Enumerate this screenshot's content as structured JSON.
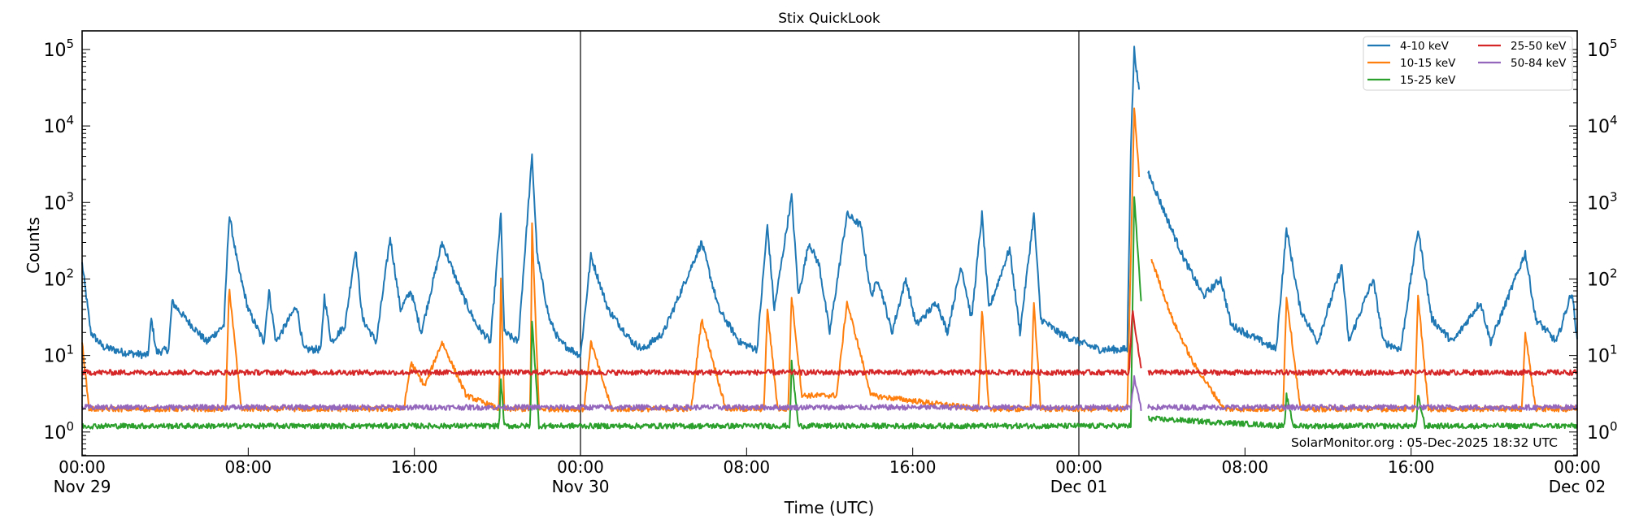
{
  "chart_data": {
    "type": "line",
    "title": "Stix QuickLook",
    "xlabel": "Time (UTC)",
    "ylabel": "Counts",
    "yscale": "log",
    "ylim": [
      0.49,
      175000
    ],
    "xlim": [
      "2025-11-29 00:00",
      "2025-12-02 00:00"
    ],
    "grid": false,
    "legend_position": "top-right",
    "day_boundaries": [
      "2025-11-30 00:00",
      "2025-12-01 00:00"
    ],
    "x_ticks": [
      {
        "time": "00:00",
        "date": "Nov 29",
        "at": "2025-11-29 00:00"
      },
      {
        "time": "08:00",
        "date": "",
        "at": "2025-11-29 08:00"
      },
      {
        "time": "16:00",
        "date": "",
        "at": "2025-11-29 16:00"
      },
      {
        "time": "00:00",
        "date": "Nov 30",
        "at": "2025-11-30 00:00"
      },
      {
        "time": "08:00",
        "date": "",
        "at": "2025-11-30 08:00"
      },
      {
        "time": "16:00",
        "date": "",
        "at": "2025-11-30 16:00"
      },
      {
        "time": "00:00",
        "date": "Dec 01",
        "at": "2025-12-01 00:00"
      },
      {
        "time": "08:00",
        "date": "",
        "at": "2025-12-01 08:00"
      },
      {
        "time": "16:00",
        "date": "",
        "at": "2025-12-01 16:00"
      },
      {
        "time": "00:00",
        "date": "Dec 02",
        "at": "2025-12-02 00:00"
      }
    ],
    "y_ticks": [
      {
        "base": "10",
        "exp": "0",
        "value": 1
      },
      {
        "base": "10",
        "exp": "1",
        "value": 10
      },
      {
        "base": "10",
        "exp": "2",
        "value": 100
      },
      {
        "base": "10",
        "exp": "3",
        "value": 1000
      },
      {
        "base": "10",
        "exp": "4",
        "value": 10000
      },
      {
        "base": "10",
        "exp": "5",
        "value": 100000
      }
    ],
    "annotation": "SolarMonitor.org : 05-Dec-2025 18:32 UTC",
    "series": [
      {
        "name": "4-10 keV",
        "color": "#1f77b4",
        "points": [
          [
            "2025-11-29 00:00",
            160
          ],
          [
            "2025-11-29 00:25",
            20
          ],
          [
            "2025-11-29 01:00",
            13
          ],
          [
            "2025-11-29 02:00",
            11
          ],
          [
            "2025-11-29 03:10",
            10
          ],
          [
            "2025-11-29 03:20",
            30
          ],
          [
            "2025-11-29 03:35",
            11
          ],
          [
            "2025-11-29 04:10",
            12
          ],
          [
            "2025-11-29 04:20",
            50
          ],
          [
            "2025-11-29 05:00",
            30
          ],
          [
            "2025-11-29 06:00",
            15
          ],
          [
            "2025-11-29 06:50",
            25
          ],
          [
            "2025-11-29 07:05",
            700
          ],
          [
            "2025-11-29 07:30",
            150
          ],
          [
            "2025-11-29 08:00",
            40
          ],
          [
            "2025-11-29 08:45",
            15
          ],
          [
            "2025-11-29 09:00",
            70
          ],
          [
            "2025-11-29 09:20",
            15
          ],
          [
            "2025-11-29 10:20",
            45
          ],
          [
            "2025-11-29 10:40",
            12
          ],
          [
            "2025-11-29 11:30",
            12
          ],
          [
            "2025-11-29 11:40",
            60
          ],
          [
            "2025-11-29 12:00",
            15
          ],
          [
            "2025-11-29 12:40",
            25
          ],
          [
            "2025-11-29 13:10",
            250
          ],
          [
            "2025-11-29 13:30",
            30
          ],
          [
            "2025-11-29 14:10",
            15
          ],
          [
            "2025-11-29 14:50",
            350
          ],
          [
            "2025-11-29 15:20",
            40
          ],
          [
            "2025-11-29 15:50",
            70
          ],
          [
            "2025-11-29 16:20",
            20
          ],
          [
            "2025-11-29 17:20",
            300
          ],
          [
            "2025-11-29 18:20",
            60
          ],
          [
            "2025-11-29 19:00",
            25
          ],
          [
            "2025-11-29 19:40",
            15
          ],
          [
            "2025-11-29 20:10",
            700
          ],
          [
            "2025-11-29 20:20",
            20
          ],
          [
            "2025-11-29 21:00",
            15
          ],
          [
            "2025-11-29 21:40",
            4000
          ],
          [
            "2025-11-29 21:55",
            200
          ],
          [
            "2025-11-29 22:30",
            30
          ],
          [
            "2025-11-29 23:00",
            15
          ],
          [
            "2025-11-30 00:00",
            10
          ],
          [
            "2025-11-30 00:30",
            200
          ],
          [
            "2025-11-30 01:20",
            40
          ],
          [
            "2025-11-30 02:30",
            15
          ],
          [
            "2025-11-30 03:00",
            12
          ],
          [
            "2025-11-30 04:00",
            20
          ],
          [
            "2025-11-30 05:50",
            300
          ],
          [
            "2025-11-30 06:40",
            40
          ],
          [
            "2025-11-30 07:40",
            15
          ],
          [
            "2025-11-30 08:30",
            12
          ],
          [
            "2025-11-30 09:00",
            500
          ],
          [
            "2025-11-30 09:20",
            40
          ],
          [
            "2025-11-30 10:10",
            1200
          ],
          [
            "2025-11-30 10:30",
            60
          ],
          [
            "2025-11-30 11:00",
            300
          ],
          [
            "2025-11-30 11:30",
            150
          ],
          [
            "2025-11-30 12:00",
            20
          ],
          [
            "2025-11-30 12:50",
            700
          ],
          [
            "2025-11-30 13:30",
            500
          ],
          [
            "2025-11-30 14:00",
            60
          ],
          [
            "2025-11-30 14:20",
            100
          ],
          [
            "2025-11-30 15:00",
            20
          ],
          [
            "2025-11-30 15:40",
            100
          ],
          [
            "2025-11-30 16:10",
            25
          ],
          [
            "2025-11-30 17:10",
            50
          ],
          [
            "2025-11-30 17:40",
            20
          ],
          [
            "2025-11-30 18:20",
            150
          ],
          [
            "2025-11-30 18:50",
            30
          ],
          [
            "2025-11-30 19:20",
            700
          ],
          [
            "2025-11-30 19:40",
            40
          ],
          [
            "2025-11-30 20:40",
            250
          ],
          [
            "2025-11-30 21:10",
            20
          ],
          [
            "2025-11-30 21:50",
            700
          ],
          [
            "2025-11-30 22:10",
            30
          ],
          [
            "2025-11-30 23:00",
            20
          ],
          [
            "2025-12-01 00:00",
            15
          ],
          [
            "2025-12-01 01:00",
            12
          ],
          [
            "2025-12-01 02:20",
            12
          ],
          [
            "2025-12-01 02:30",
            5000
          ],
          [
            "2025-12-01 02:40",
            100000
          ],
          [
            "2025-12-01 02:55",
            25000
          ],
          null,
          [
            "2025-12-01 03:20",
            2500
          ],
          [
            "2025-12-01 04:00",
            900
          ],
          [
            "2025-12-01 05:00",
            200
          ],
          [
            "2025-12-01 06:00",
            60
          ],
          [
            "2025-12-01 06:50",
            100
          ],
          [
            "2025-12-01 07:20",
            25
          ],
          [
            "2025-12-01 08:00",
            20
          ],
          [
            "2025-12-01 09:30",
            12
          ],
          [
            "2025-12-01 10:00",
            450
          ],
          [
            "2025-12-01 10:40",
            40
          ],
          [
            "2025-12-01 11:30",
            15
          ],
          [
            "2025-12-01 12:40",
            150
          ],
          [
            "2025-12-01 13:00",
            15
          ],
          [
            "2025-12-01 14:10",
            100
          ],
          [
            "2025-12-01 14:40",
            15
          ],
          [
            "2025-12-01 15:30",
            12
          ],
          [
            "2025-12-01 16:20",
            450
          ],
          [
            "2025-12-01 17:00",
            30
          ],
          [
            "2025-12-01 18:00",
            15
          ],
          [
            "2025-12-01 19:20",
            50
          ],
          [
            "2025-12-01 19:50",
            15
          ],
          [
            "2025-12-01 21:30",
            220
          ],
          [
            "2025-12-01 22:00",
            30
          ],
          [
            "2025-12-01 23:00",
            15
          ],
          [
            "2025-12-01 23:45",
            70
          ],
          [
            "2025-12-02 00:00",
            15
          ]
        ]
      },
      {
        "name": "10-15 keV",
        "color": "#ff7f0e",
        "points": [
          [
            "2025-11-29 00:00",
            15
          ],
          [
            "2025-11-29 00:20",
            2
          ],
          [
            "2025-11-29 06:55",
            2
          ],
          [
            "2025-11-29 07:05",
            80
          ],
          [
            "2025-11-29 07:40",
            2
          ],
          [
            "2025-11-29 15:30",
            2
          ],
          [
            "2025-11-29 15:50",
            8
          ],
          [
            "2025-11-29 16:30",
            4
          ],
          [
            "2025-11-29 17:20",
            15
          ],
          [
            "2025-11-29 18:30",
            3
          ],
          [
            "2025-11-29 20:05",
            2
          ],
          [
            "2025-11-29 20:10",
            100
          ],
          [
            "2025-11-29 20:20",
            2
          ],
          [
            "2025-11-29 21:35",
            2
          ],
          [
            "2025-11-29 21:40",
            500
          ],
          [
            "2025-11-29 22:00",
            2
          ],
          [
            "2025-11-30 00:10",
            2
          ],
          [
            "2025-11-30 00:30",
            15
          ],
          [
            "2025-11-30 01:30",
            2
          ],
          [
            "2025-11-30 05:20",
            2
          ],
          [
            "2025-11-30 05:50",
            30
          ],
          [
            "2025-11-30 07:00",
            2
          ],
          [
            "2025-11-30 08:50",
            2
          ],
          [
            "2025-11-30 09:00",
            40
          ],
          [
            "2025-11-30 09:30",
            2
          ],
          [
            "2025-11-30 10:00",
            2
          ],
          [
            "2025-11-30 10:10",
            60
          ],
          [
            "2025-11-30 10:40",
            3
          ],
          [
            "2025-11-30 12:20",
            3
          ],
          [
            "2025-11-30 12:50",
            50
          ],
          [
            "2025-11-30 14:00",
            3
          ],
          [
            "2025-11-30 19:10",
            2
          ],
          [
            "2025-11-30 19:20",
            40
          ],
          [
            "2025-11-30 19:40",
            2
          ],
          [
            "2025-11-30 21:40",
            2
          ],
          [
            "2025-11-30 21:50",
            50
          ],
          [
            "2025-11-30 22:10",
            2
          ],
          [
            "2025-12-01 02:20",
            2
          ],
          [
            "2025-12-01 02:40",
            17000
          ],
          [
            "2025-12-01 02:55",
            2000
          ],
          null,
          [
            "2025-12-01 03:30",
            180
          ],
          [
            "2025-12-01 04:30",
            30
          ],
          [
            "2025-12-01 05:30",
            8
          ],
          [
            "2025-12-01 07:00",
            2
          ],
          [
            "2025-12-01 09:50",
            2
          ],
          [
            "2025-12-01 10:00",
            60
          ],
          [
            "2025-12-01 10:40",
            2
          ],
          [
            "2025-12-01 16:10",
            2
          ],
          [
            "2025-12-01 16:20",
            60
          ],
          [
            "2025-12-01 16:50",
            2
          ],
          [
            "2025-12-01 21:20",
            2
          ],
          [
            "2025-12-01 21:30",
            20
          ],
          [
            "2025-12-01 22:00",
            2
          ],
          [
            "2025-12-02 00:00",
            2
          ]
        ]
      },
      {
        "name": "15-25 keV",
        "color": "#2ca02c",
        "points": [
          [
            "2025-11-29 00:00",
            1.2
          ],
          [
            "2025-11-29 20:05",
            1.2
          ],
          [
            "2025-11-29 20:10",
            5
          ],
          [
            "2025-11-29 20:20",
            1.2
          ],
          [
            "2025-11-29 21:35",
            1.2
          ],
          [
            "2025-11-29 21:40",
            30
          ],
          [
            "2025-11-29 22:00",
            1.2
          ],
          [
            "2025-11-30 10:05",
            1.2
          ],
          [
            "2025-11-30 10:10",
            8
          ],
          [
            "2025-11-30 10:30",
            1.2
          ],
          [
            "2025-12-01 02:30",
            1.2
          ],
          [
            "2025-12-01 02:40",
            1200
          ],
          [
            "2025-12-01 03:00",
            50
          ],
          null,
          [
            "2025-12-01 03:20",
            1.5
          ],
          [
            "2025-12-01 09:55",
            1.2
          ],
          [
            "2025-12-01 10:00",
            3
          ],
          [
            "2025-12-01 10:20",
            1.2
          ],
          [
            "2025-12-01 16:15",
            1.2
          ],
          [
            "2025-12-01 16:20",
            3
          ],
          [
            "2025-12-01 16:40",
            1.2
          ],
          [
            "2025-12-02 00:00",
            1.2
          ]
        ]
      },
      {
        "name": "25-50 keV",
        "color": "#d62728",
        "points": [
          [
            "2025-11-29 00:00",
            6
          ],
          [
            "2025-12-01 02:25",
            6
          ],
          [
            "2025-12-01 02:35",
            40
          ],
          [
            "2025-12-01 03:00",
            6.5
          ],
          null,
          [
            "2025-12-01 03:20",
            6
          ],
          [
            "2025-12-02 00:00",
            6
          ]
        ]
      },
      {
        "name": "50-84 keV",
        "color": "#9467bd",
        "points": [
          [
            "2025-11-29 00:00",
            2.1
          ],
          [
            "2025-12-01 02:30",
            2.1
          ],
          [
            "2025-12-01 02:40",
            5
          ],
          [
            "2025-12-01 03:00",
            2
          ],
          null,
          [
            "2025-12-01 03:20",
            2.1
          ],
          [
            "2025-12-02 00:00",
            2.1
          ]
        ]
      }
    ]
  }
}
